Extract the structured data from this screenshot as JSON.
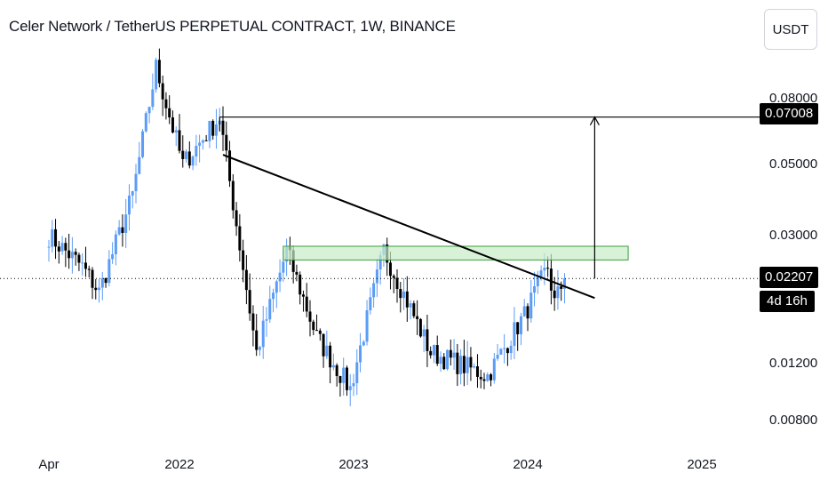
{
  "header": {
    "title": "Celer Network / TetherUS PERPETUAL CONTRACT, 1W, BINANCE",
    "currency_button": "USDT"
  },
  "colors": {
    "up": "#5b9cf6",
    "down": "#000000",
    "zone_fill": "#c8ecc8",
    "zone_stroke": "#3c9c3c",
    "line": "#000000"
  },
  "chart_data": {
    "type": "candlestick",
    "title": "Celer Network / TetherUS PERPETUAL CONTRACT, 1W, BINANCE",
    "y_scale": "log",
    "y_tick_labels": [
      "0.08000",
      "0.05000",
      "0.03000",
      "0.01200",
      "0.00800"
    ],
    "x_tick_labels": [
      "Apr",
      "2022",
      "2023",
      "2024",
      "2025"
    ],
    "last_price": "0.02207",
    "countdown": "4d 16h",
    "target_price": "0.07008",
    "ylim": [
      0.0065,
      0.14
    ],
    "resistance_zone": [
      0.0252,
      0.0278
    ],
    "trendline": [
      [
        "2022-04-04",
        0.0535
      ],
      [
        "2024-05-20",
        0.0192
      ]
    ],
    "target_line": 0.07008,
    "key_points": [
      [
        "2021-04-05",
        0.03
      ],
      [
        "2021-06-14",
        0.024
      ],
      [
        "2021-07-19",
        0.02
      ],
      [
        "2021-09-27",
        0.04
      ],
      [
        "2021-11-15",
        0.1
      ],
      [
        "2022-01-10",
        0.05
      ],
      [
        "2022-03-28",
        0.07
      ],
      [
        "2022-06-13",
        0.013
      ],
      [
        "2022-08-15",
        0.027
      ],
      [
        "2022-10-17",
        0.0145
      ],
      [
        "2022-12-26",
        0.01
      ],
      [
        "2023-03-06",
        0.027
      ],
      [
        "2023-06-12",
        0.013
      ],
      [
        "2023-10-09",
        0.011
      ],
      [
        "2023-12-25",
        0.017
      ],
      [
        "2024-02-12",
        0.024
      ],
      [
        "2024-02-26",
        0.0185
      ],
      [
        "2024-03-18",
        0.0221
      ]
    ]
  }
}
